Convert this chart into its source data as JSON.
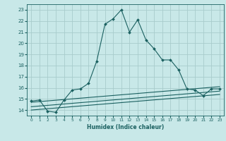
{
  "xlabel": "Humidex (Indice chaleur)",
  "bg_color": "#c8e8e8",
  "grid_color": "#a8cccc",
  "line_color": "#1a6060",
  "xlim": [
    -0.5,
    23.5
  ],
  "ylim": [
    13.5,
    23.5
  ],
  "yticks": [
    14,
    15,
    16,
    17,
    18,
    19,
    20,
    21,
    22,
    23
  ],
  "xticks": [
    0,
    1,
    2,
    3,
    4,
    5,
    6,
    7,
    8,
    9,
    10,
    11,
    12,
    13,
    14,
    15,
    16,
    17,
    18,
    19,
    20,
    21,
    22,
    23
  ],
  "curve_x": [
    0,
    1,
    2,
    3,
    4,
    5,
    6,
    7,
    8,
    9,
    10,
    11,
    12,
    13,
    14,
    15,
    16,
    17,
    18,
    19,
    20,
    21,
    22,
    23
  ],
  "curve_y": [
    14.8,
    14.9,
    13.9,
    13.8,
    14.9,
    15.8,
    15.9,
    16.4,
    18.4,
    21.7,
    22.2,
    23.0,
    21.0,
    22.1,
    20.3,
    19.5,
    18.5,
    18.5,
    17.6,
    15.9,
    15.8,
    15.3,
    15.9,
    15.9
  ],
  "line1_x": [
    0,
    23
  ],
  "line1_y": [
    14.0,
    15.4
  ],
  "line2_x": [
    0,
    23
  ],
  "line2_y": [
    14.3,
    15.7
  ],
  "line3_x": [
    0,
    23
  ],
  "line3_y": [
    14.7,
    16.1
  ]
}
